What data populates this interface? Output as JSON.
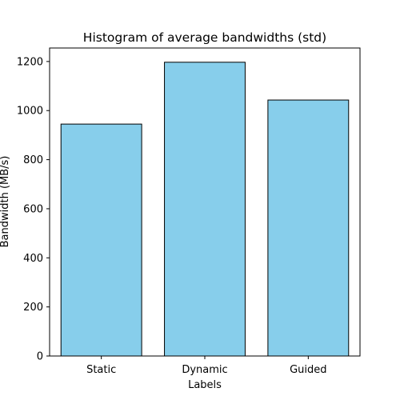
{
  "chart_data": {
    "type": "bar",
    "title": "Histogram of average bandwidths (std)",
    "xlabel": "Labels",
    "ylabel": "Bandwidth (MB/s)",
    "categories": [
      "Static",
      "Dynamic",
      "Guided"
    ],
    "values": [
      945,
      1197,
      1043
    ],
    "ylim": [
      0,
      1255
    ],
    "yticks": [
      0,
      200,
      400,
      600,
      800,
      1000,
      1200
    ],
    "grid": false,
    "bar_color": "#87ceeb",
    "edge_color": "#000000"
  }
}
